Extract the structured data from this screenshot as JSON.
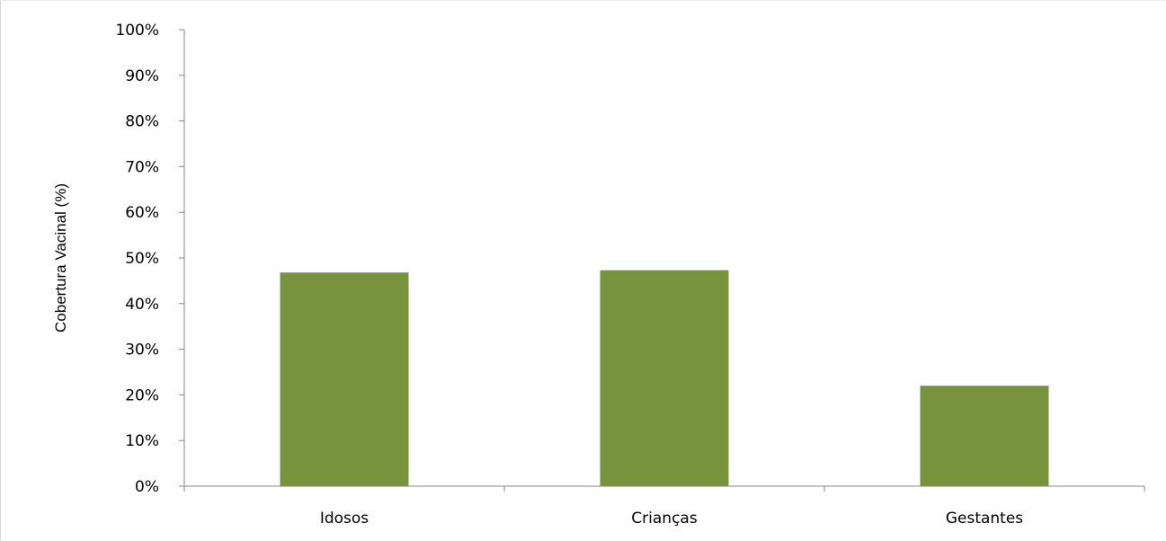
{
  "chart_data": {
    "type": "bar",
    "title": "",
    "xlabel": "",
    "ylabel": "Cobertura Vacinal (%)",
    "categories": [
      "Idosos",
      "Crianças",
      "Gestantes"
    ],
    "values": [
      46.8,
      47.3,
      22.0
    ],
    "ylim": [
      0,
      100
    ],
    "yticks": [
      0,
      10,
      20,
      30,
      40,
      50,
      60,
      70,
      80,
      90,
      100
    ],
    "ytick_labels": [
      "0%",
      "10%",
      "20%",
      "30%",
      "40%",
      "50%",
      "60%",
      "70%",
      "80%",
      "90%",
      "100%"
    ],
    "bar_color": "#77933c",
    "grid": false,
    "legend": "none"
  }
}
